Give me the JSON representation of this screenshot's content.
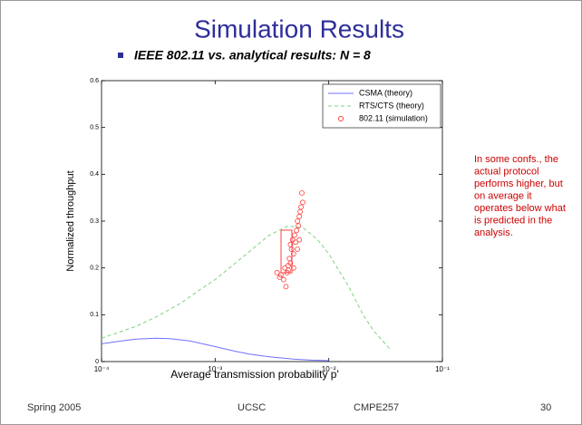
{
  "slide": {
    "title": "Simulation Results",
    "bullet": "IEEE 802.11 vs. analytical results: N = 8",
    "side_note": [
      "In some confs., the",
      "actual protocol",
      "performs higher, but",
      "on average it",
      "operates below what",
      "is predicted in the",
      "analysis."
    ],
    "footer": [
      "Spring 2005",
      "UCSC",
      "CMPE257",
      "30"
    ]
  },
  "chart_data": {
    "type": "line",
    "xlabel": "Average transmission probability p'",
    "ylabel": "Normalized throughput",
    "xscale": "log",
    "xlim": [
      0.0001,
      0.1
    ],
    "ylim": [
      0,
      0.6
    ],
    "xticks": [
      {
        "value": 0.0001,
        "label": "10⁻⁴"
      },
      {
        "value": 0.001,
        "label": "10⁻³"
      },
      {
        "value": 0.01,
        "label": "10⁻²"
      },
      {
        "value": 0.1,
        "label": "10⁻¹"
      }
    ],
    "yticks": [
      0,
      0.1,
      0.2,
      0.3,
      0.4,
      0.5,
      0.6
    ],
    "legend": "upper right",
    "series": [
      {
        "name": "CSMA (theory)",
        "color": "#7070ff",
        "style": "solid",
        "x": [
          0.0001,
          0.00015,
          0.0002,
          0.0003,
          0.0004,
          0.0006,
          0.001,
          0.0015,
          0.002,
          0.003,
          0.005,
          0.007,
          0.01
        ],
        "values": [
          0.038,
          0.044,
          0.048,
          0.05,
          0.049,
          0.044,
          0.032,
          0.022,
          0.016,
          0.01,
          0.005,
          0.003,
          0.002
        ]
      },
      {
        "name": "RTS/CTS (theory)",
        "color": "#80d080",
        "style": "dashed",
        "x": [
          0.0001,
          0.0002,
          0.0003,
          0.0005,
          0.0007,
          0.001,
          0.0015,
          0.002,
          0.003,
          0.0044,
          0.006,
          0.008,
          0.01,
          0.015,
          0.02,
          0.025,
          0.035
        ],
        "values": [
          0.05,
          0.075,
          0.095,
          0.125,
          0.15,
          0.175,
          0.21,
          0.235,
          0.27,
          0.29,
          0.285,
          0.26,
          0.23,
          0.16,
          0.1,
          0.065,
          0.025
        ]
      },
      {
        "name": "802.11 (simulation)",
        "color": "#ff4040",
        "style": "markers",
        "x": [
          0.0035,
          0.0037,
          0.0038,
          0.004,
          0.0041,
          0.0042,
          0.0043,
          0.0044,
          0.0045,
          0.0046,
          0.0047,
          0.0048,
          0.0049,
          0.005,
          0.0051,
          0.0052,
          0.0053,
          0.0054,
          0.0055,
          0.0056,
          0.0057,
          0.0058,
          0.0059,
          0.0055,
          0.0053,
          0.0049,
          0.0046,
          0.0044
        ],
        "values": [
          0.19,
          0.18,
          0.185,
          0.175,
          0.2,
          0.16,
          0.19,
          0.205,
          0.22,
          0.25,
          0.24,
          0.26,
          0.23,
          0.27,
          0.255,
          0.28,
          0.3,
          0.29,
          0.31,
          0.32,
          0.33,
          0.36,
          0.34,
          0.26,
          0.24,
          0.2,
          0.21,
          0.195
        ]
      }
    ]
  }
}
